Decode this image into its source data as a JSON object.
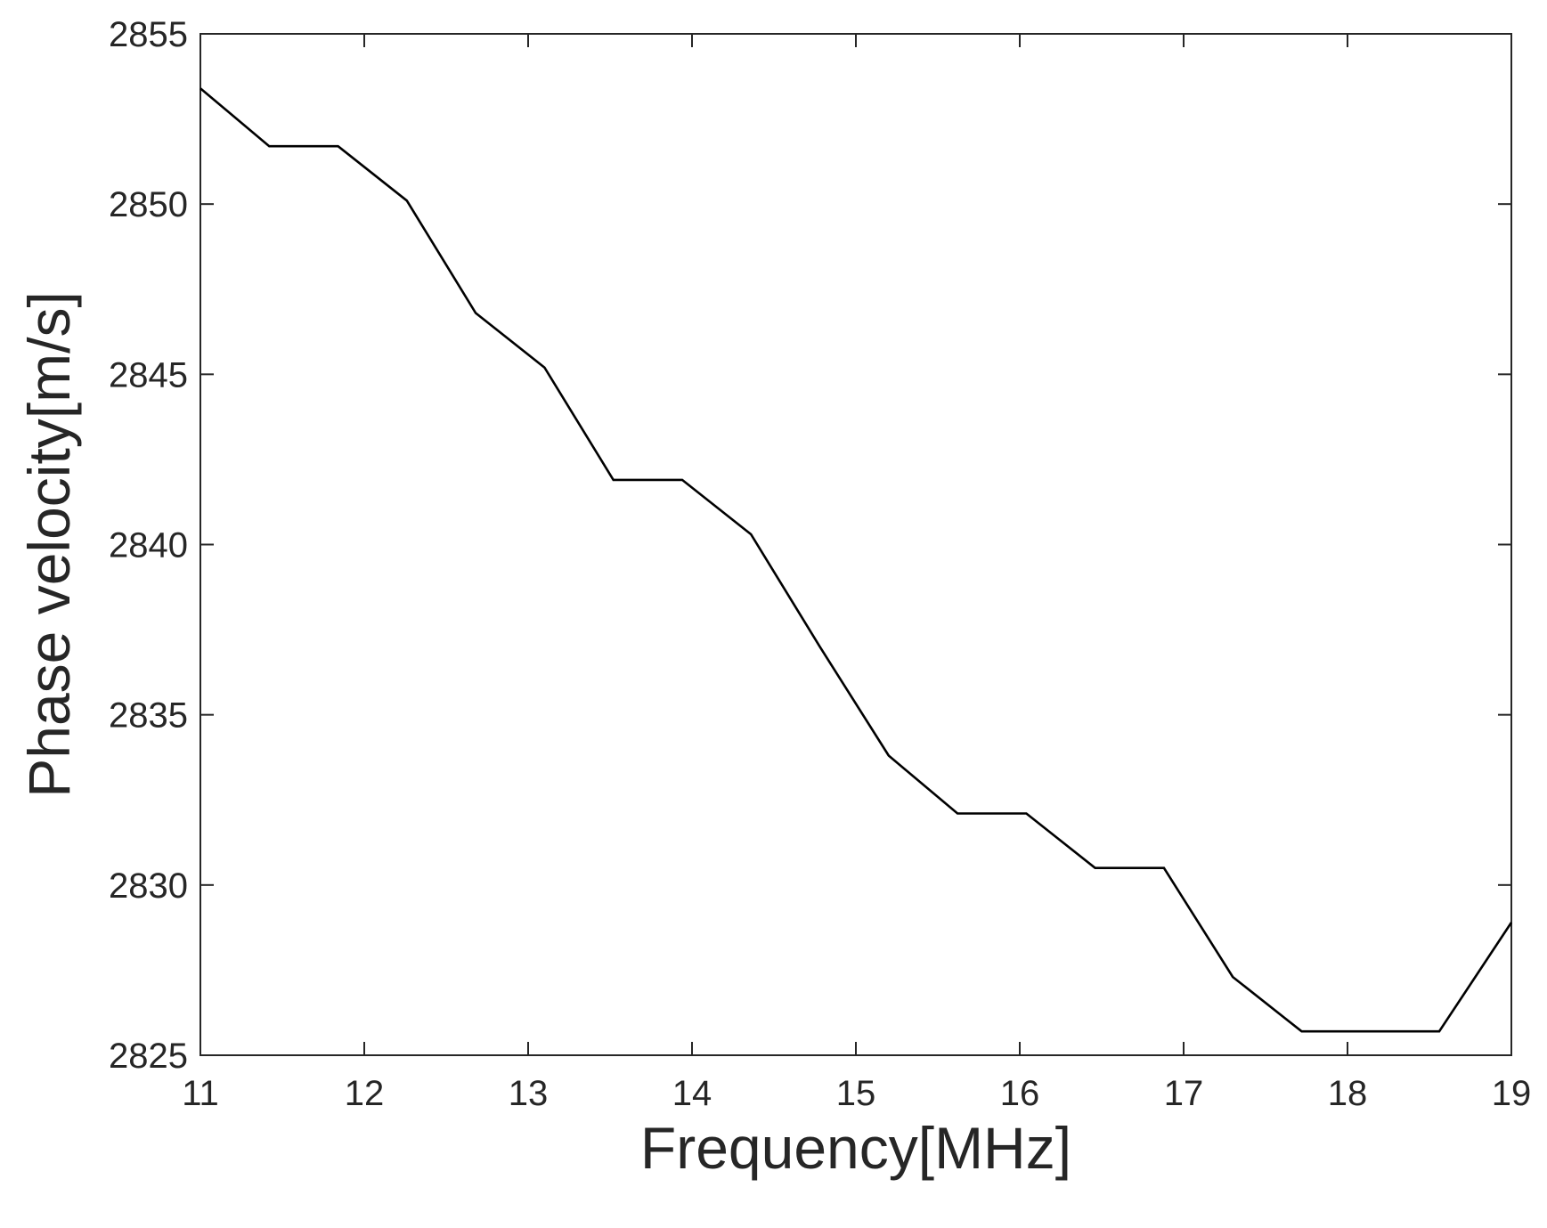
{
  "chart_data": {
    "type": "line",
    "title": "",
    "xlabel": "Frequency[MHz]",
    "ylabel": "Phase velocity[m/s]",
    "xlim": [
      11,
      19
    ],
    "ylim": [
      2825,
      2855
    ],
    "xticks": [
      11,
      12,
      13,
      14,
      15,
      16,
      17,
      18,
      19
    ],
    "yticks": [
      2825,
      2830,
      2835,
      2840,
      2845,
      2850,
      2855
    ],
    "grid": false,
    "legend": "none",
    "line_color": "#000000",
    "axis_color": "#262626",
    "series": [
      {
        "x": [
          11,
          11.42,
          11.84,
          12.26,
          12.68,
          13.1,
          13.52,
          13.94,
          14.36,
          14.78,
          15.2,
          15.62,
          16.04,
          16.46,
          16.88,
          17.3,
          17.72,
          18.14,
          18.56,
          19
        ],
        "values": [
          2853.4,
          2851.7,
          2851.7,
          2850.1,
          2846.8,
          2845.2,
          2841.9,
          2841.9,
          2840.3,
          2837.0,
          2833.8,
          2832.1,
          2832.1,
          2830.5,
          2830.5,
          2827.3,
          2825.7,
          2825.7,
          2825.7,
          2828.9
        ]
      }
    ]
  }
}
